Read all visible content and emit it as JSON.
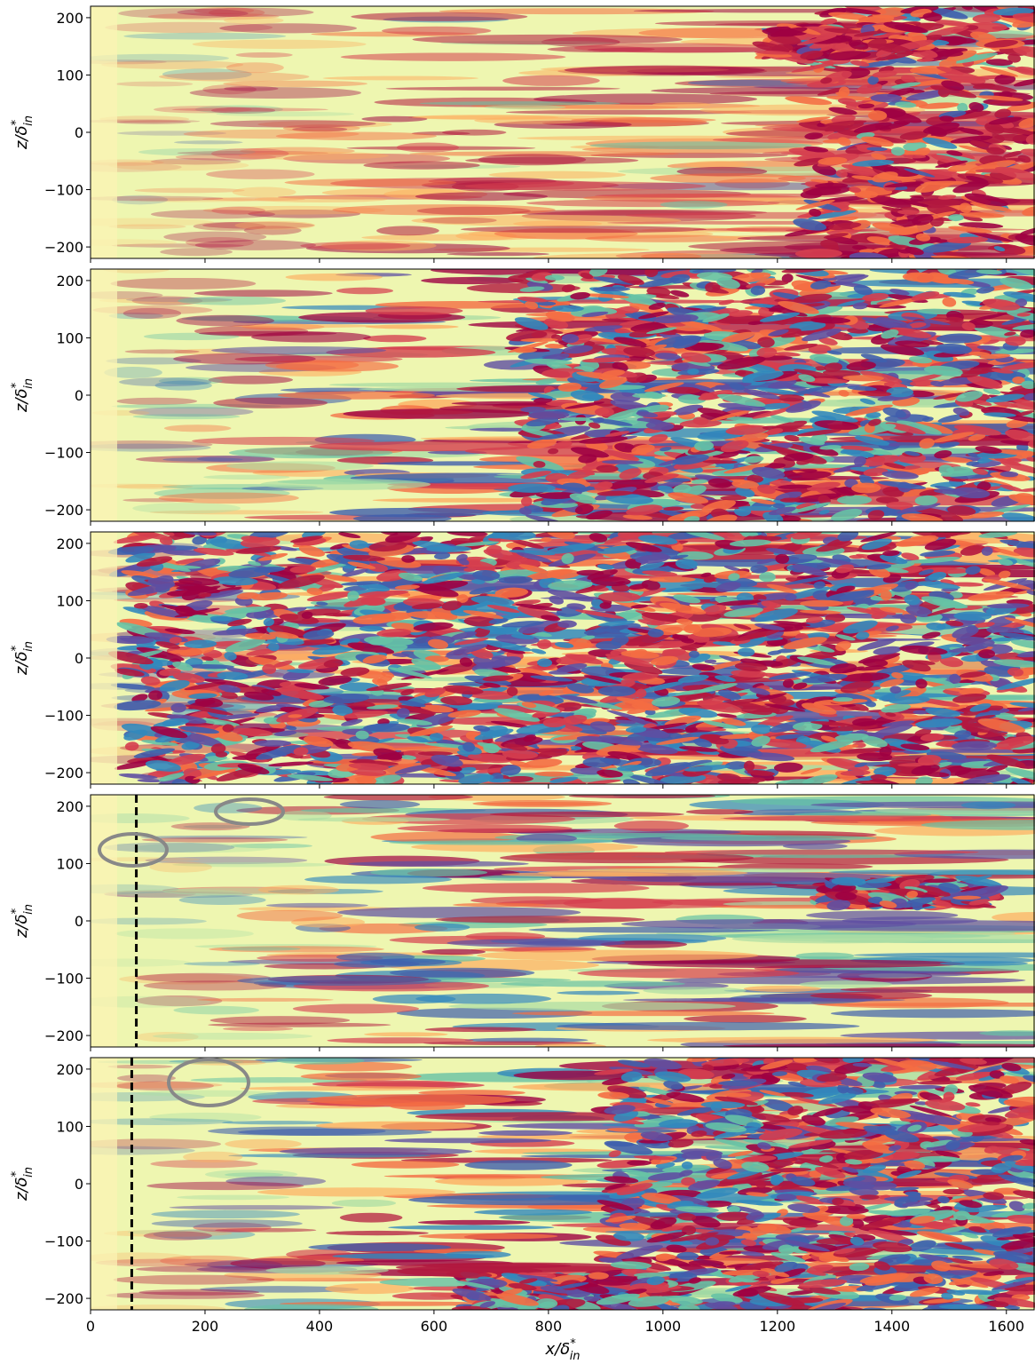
{
  "chart_data": [
    {
      "type": "heatmap",
      "ylabel": {
        "text": "z/δ",
        "sup": "*",
        "sub": "in"
      },
      "xlim": [
        0,
        1650
      ],
      "ylim": [
        -220,
        220
      ],
      "xticks": [
        0,
        200,
        400,
        600,
        800,
        1000,
        1200,
        1400,
        1600
      ],
      "yticks": [
        {
          "value": -200,
          "label": "−200"
        },
        {
          "value": -100,
          "label": "−100"
        },
        0,
        100,
        200
      ]
    },
    {
      "type": "heatmap",
      "ylabel": {
        "text": "z/δ",
        "sup": "*",
        "sub": "in"
      },
      "xlim": [
        0,
        1650
      ],
      "ylim": [
        -220,
        220
      ],
      "xticks": [
        0,
        200,
        400,
        600,
        800,
        1000,
        1200,
        1400,
        1600
      ],
      "yticks": [
        {
          "value": -200,
          "label": "−200"
        },
        {
          "value": -100,
          "label": "−100"
        },
        0,
        100,
        200
      ]
    },
    {
      "type": "heatmap",
      "ylabel": {
        "text": "z/δ",
        "sup": "*",
        "sub": "in"
      },
      "xlim": [
        0,
        1650
      ],
      "ylim": [
        -220,
        220
      ],
      "xticks": [
        0,
        200,
        400,
        600,
        800,
        1000,
        1200,
        1400,
        1600
      ],
      "yticks": [
        {
          "value": -200,
          "label": "−200"
        },
        {
          "value": -100,
          "label": "−100"
        },
        0,
        100,
        200
      ]
    },
    {
      "type": "heatmap",
      "ylabel": {
        "text": "z/δ",
        "sup": "*",
        "sub": "in"
      },
      "xlim": [
        0,
        1650
      ],
      "ylim": [
        -220,
        220
      ],
      "xticks": [
        0,
        200,
        400,
        600,
        800,
        1000,
        1200,
        1400,
        1600
      ],
      "yticks": [
        {
          "value": -200,
          "label": "−200"
        },
        {
          "value": -100,
          "label": "−100"
        },
        0,
        100,
        200
      ],
      "vlines": [
        80
      ]
    },
    {
      "type": "heatmap",
      "ylabel": {
        "text": "z/δ",
        "sup": "*",
        "sub": "in"
      },
      "xlim": [
        0,
        1650
      ],
      "ylim": [
        -220,
        220
      ],
      "xticks": [
        {
          "value": 0,
          "label": "0"
        },
        {
          "value": 200,
          "label": "200"
        },
        {
          "value": 400,
          "label": "400"
        },
        {
          "value": 600,
          "label": "600"
        },
        {
          "value": 800,
          "label": "800"
        },
        {
          "value": 1000,
          "label": "1000"
        },
        {
          "value": 1200,
          "label": "1200"
        },
        {
          "value": 1400,
          "label": "1400"
        },
        {
          "value": 1600,
          "label": "1600"
        }
      ],
      "yticks": [
        {
          "value": -200,
          "label": "−200"
        },
        {
          "value": -100,
          "label": "−100"
        },
        0,
        100,
        200
      ],
      "vlines": [
        72
      ],
      "xlabel": {
        "text": "x/δ",
        "sup": "*",
        "sub": "in"
      }
    }
  ]
}
